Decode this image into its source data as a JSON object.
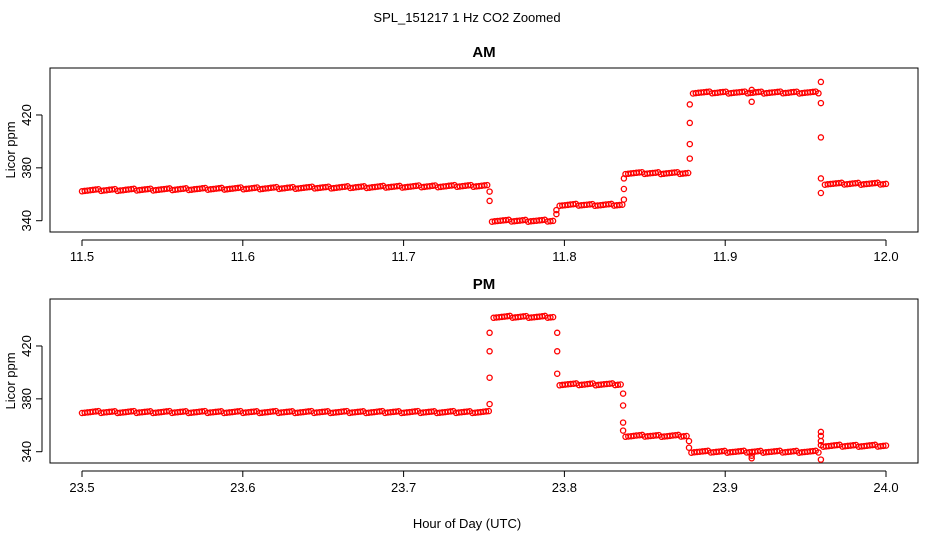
{
  "suptitle": "SPL_151217  1 Hz CO2 Zoomed",
  "xlabel": "Hour of Day (UTC)",
  "marker_color": "#ff0000",
  "chart_data": [
    {
      "type": "scatter",
      "title": "AM",
      "ylabel": "Licor ppm",
      "xlim": [
        11.5,
        12.0
      ],
      "ylim": [
        336,
        451
      ],
      "xticks": [
        "11.5",
        "11.6",
        "11.7",
        "11.8",
        "11.9",
        "12.0"
      ],
      "yticks": [
        "340",
        "380",
        "420"
      ],
      "segments": [
        {
          "x": [
            11.5,
            11.752
          ],
          "y": [
            363,
            366.5
          ]
        },
        {
          "x": [
            11.755,
            11.793
          ],
          "y": [
            340,
            340
          ]
        },
        {
          "x": [
            11.797,
            11.836
          ],
          "y": [
            352,
            352
          ]
        },
        {
          "x": [
            11.838,
            11.877
          ],
          "y": [
            376,
            376
          ]
        },
        {
          "x": [
            11.88,
            11.958
          ],
          "y": [
            437,
            437
          ]
        },
        {
          "x": [
            11.962,
            12.0
          ],
          "y": [
            368,
            368
          ]
        }
      ],
      "transitions": [
        {
          "x": 11.7535,
          "y": [
            355,
            362
          ]
        },
        {
          "x": 11.795,
          "y": [
            345,
            348
          ]
        },
        {
          "x": 11.837,
          "y": [
            356,
            364,
            372
          ]
        },
        {
          "x": 11.878,
          "y": [
            387,
            398,
            414,
            428
          ]
        },
        {
          "x": 11.9165,
          "y": [
            430,
            439
          ]
        },
        {
          "x": 11.9595,
          "y": [
            445,
            429,
            403,
            372,
            361
          ]
        }
      ]
    },
    {
      "type": "scatter",
      "title": "PM",
      "ylabel": "Licor ppm",
      "xlim": [
        23.5,
        24.0
      ],
      "ylim": [
        336,
        451
      ],
      "xticks": [
        "23.5",
        "23.6",
        "23.7",
        "23.8",
        "23.9",
        "24.0"
      ],
      "yticks": [
        "340",
        "380",
        "420"
      ],
      "segments": [
        {
          "x": [
            23.5,
            23.753
          ],
          "y": [
            370,
            370
          ]
        },
        {
          "x": [
            23.756,
            23.793
          ],
          "y": [
            442,
            442
          ]
        },
        {
          "x": [
            23.797,
            23.835
          ],
          "y": [
            391,
            391
          ]
        },
        {
          "x": [
            23.838,
            23.876
          ],
          "y": [
            352,
            352
          ]
        },
        {
          "x": [
            23.879,
            23.958
          ],
          "y": [
            340,
            340
          ]
        },
        {
          "x": [
            23.961,
            24.0
          ],
          "y": [
            344.5,
            344.5
          ]
        }
      ],
      "transitions": [
        {
          "x": 23.7535,
          "y": [
            376,
            396,
            416,
            430
          ]
        },
        {
          "x": 23.7955,
          "y": [
            430,
            416,
            399
          ]
        },
        {
          "x": 23.8365,
          "y": [
            384,
            375,
            362,
            356
          ]
        },
        {
          "x": 23.8775,
          "y": [
            348,
            343
          ]
        },
        {
          "x": 23.9165,
          "y": [
            335,
            337
          ]
        },
        {
          "x": 23.9595,
          "y": [
            334,
            355,
            352,
            348,
            345
          ]
        }
      ]
    }
  ]
}
